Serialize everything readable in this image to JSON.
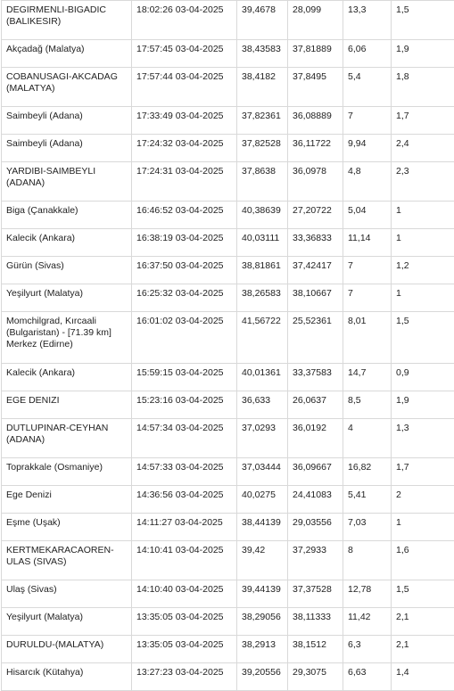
{
  "earthquakes": [
    {
      "location": "DEGIRMENLI-BIGADIC (BALIKESIR)",
      "time": "18:02:26 03-04-2025",
      "lat": "39,4678",
      "lon": "28,099",
      "depth": "13,3",
      "mag": "1,5"
    },
    {
      "location": "Akçadağ (Malatya)",
      "time": "17:57:45 03-04-2025",
      "lat": "38,43583",
      "lon": "37,81889",
      "depth": "6,06",
      "mag": "1,9"
    },
    {
      "location": "COBANUSAGI-AKCADAG (MALATYA)",
      "time": "17:57:44 03-04-2025",
      "lat": "38,4182",
      "lon": "37,8495",
      "depth": "5,4",
      "mag": "1,8"
    },
    {
      "location": "Saimbeyli (Adana)",
      "time": "17:33:49 03-04-2025",
      "lat": "37,82361",
      "lon": "36,08889",
      "depth": "7",
      "mag": "1,7"
    },
    {
      "location": "Saimbeyli (Adana)",
      "time": "17:24:32 03-04-2025",
      "lat": "37,82528",
      "lon": "36,11722",
      "depth": "9,94",
      "mag": "2,4"
    },
    {
      "location": "YARDIBI-SAIMBEYLI (ADANA)",
      "time": "17:24:31 03-04-2025",
      "lat": "37,8638",
      "lon": "36,0978",
      "depth": "4,8",
      "mag": "2,3"
    },
    {
      "location": "Biga (Çanakkale)",
      "time": "16:46:52 03-04-2025",
      "lat": "40,38639",
      "lon": "27,20722",
      "depth": "5,04",
      "mag": "1"
    },
    {
      "location": "Kalecik (Ankara)",
      "time": "16:38:19 03-04-2025",
      "lat": "40,03111",
      "lon": "33,36833",
      "depth": "11,14",
      "mag": "1"
    },
    {
      "location": "Gürün (Sivas)",
      "time": "16:37:50 03-04-2025",
      "lat": "38,81861",
      "lon": "37,42417",
      "depth": "7",
      "mag": "1,2"
    },
    {
      "location": "Yeşilyurt (Malatya)",
      "time": "16:25:32 03-04-2025",
      "lat": "38,26583",
      "lon": "38,10667",
      "depth": "7",
      "mag": "1"
    },
    {
      "location": "Momchilgrad, Kırcaali (Bulgaristan) - [71.39 km] Merkez (Edirne)",
      "time": "16:01:02 03-04-2025",
      "lat": "41,56722",
      "lon": "25,52361",
      "depth": "8,01",
      "mag": "1,5"
    },
    {
      "location": "Kalecik (Ankara)",
      "time": "15:59:15 03-04-2025",
      "lat": "40,01361",
      "lon": "33,37583",
      "depth": "14,7",
      "mag": "0,9"
    },
    {
      "location": "EGE DENIZI",
      "time": "15:23:16 03-04-2025",
      "lat": "36,633",
      "lon": "26,0637",
      "depth": "8,5",
      "mag": "1,9"
    },
    {
      "location": "DUTLUPINAR-CEYHAN (ADANA)",
      "time": "14:57:34 03-04-2025",
      "lat": "37,0293",
      "lon": "36,0192",
      "depth": "4",
      "mag": "1,3"
    },
    {
      "location": "Toprakkale (Osmaniye)",
      "time": "14:57:33 03-04-2025",
      "lat": "37,03444",
      "lon": "36,09667",
      "depth": "16,82",
      "mag": "1,7"
    },
    {
      "location": "Ege Denizi",
      "time": "14:36:56 03-04-2025",
      "lat": "40,0275",
      "lon": "24,41083",
      "depth": "5,41",
      "mag": "2"
    },
    {
      "location": "Eşme (Uşak)",
      "time": "14:11:27 03-04-2025",
      "lat": "38,44139",
      "lon": "29,03556",
      "depth": "7,03",
      "mag": "1"
    },
    {
      "location": "KERTMEKARACAOREN-ULAS (SIVAS)",
      "time": "14:10:41 03-04-2025",
      "lat": "39,42",
      "lon": "37,2933",
      "depth": "8",
      "mag": "1,6"
    },
    {
      "location": "Ulaş (Sivas)",
      "time": "14:10:40 03-04-2025",
      "lat": "39,44139",
      "lon": "37,37528",
      "depth": "12,78",
      "mag": "1,5"
    },
    {
      "location": "Yeşilyurt (Malatya)",
      "time": "13:35:05 03-04-2025",
      "lat": "38,29056",
      "lon": "38,11333",
      "depth": "11,42",
      "mag": "2,1"
    },
    {
      "location": "DURULDU-(MALATYA)",
      "time": "13:35:05 03-04-2025",
      "lat": "38,2913",
      "lon": "38,1512",
      "depth": "6,3",
      "mag": "2,1"
    },
    {
      "location": "Hisarcık (Kütahya)",
      "time": "13:27:23 03-04-2025",
      "lat": "39,20556",
      "lon": "29,3075",
      "depth": "6,63",
      "mag": "1,4"
    }
  ]
}
